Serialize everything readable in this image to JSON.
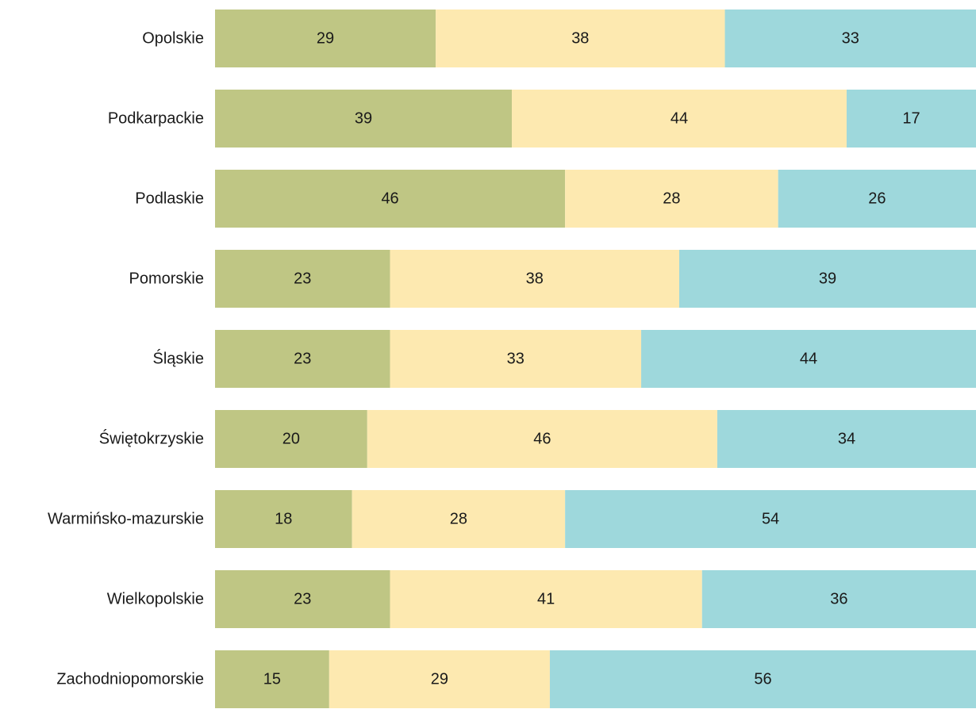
{
  "chart_data": {
    "type": "bar",
    "orientation": "horizontal",
    "stacked": true,
    "normalized": true,
    "categories": [
      "Opolskie",
      "Podkarpackie",
      "Podlaskie",
      "Pomorskie",
      "Śląskie",
      "Świętokrzyskie",
      "Warmińsko-mazurskie",
      "Wielkopolskie",
      "Zachodniopomorskie"
    ],
    "series": [
      {
        "color": "#bfc684",
        "values": [
          29,
          39,
          46,
          23,
          23,
          20,
          18,
          23,
          15
        ]
      },
      {
        "color": "#fde9b0",
        "values": [
          38,
          44,
          28,
          38,
          33,
          46,
          28,
          41,
          29
        ]
      },
      {
        "color": "#9ed8dc",
        "values": [
          33,
          17,
          26,
          39,
          44,
          34,
          54,
          36,
          56
        ]
      }
    ],
    "title": "",
    "xlabel": "",
    "ylabel": "",
    "grid": false,
    "legend": "none",
    "data_labels": true
  }
}
